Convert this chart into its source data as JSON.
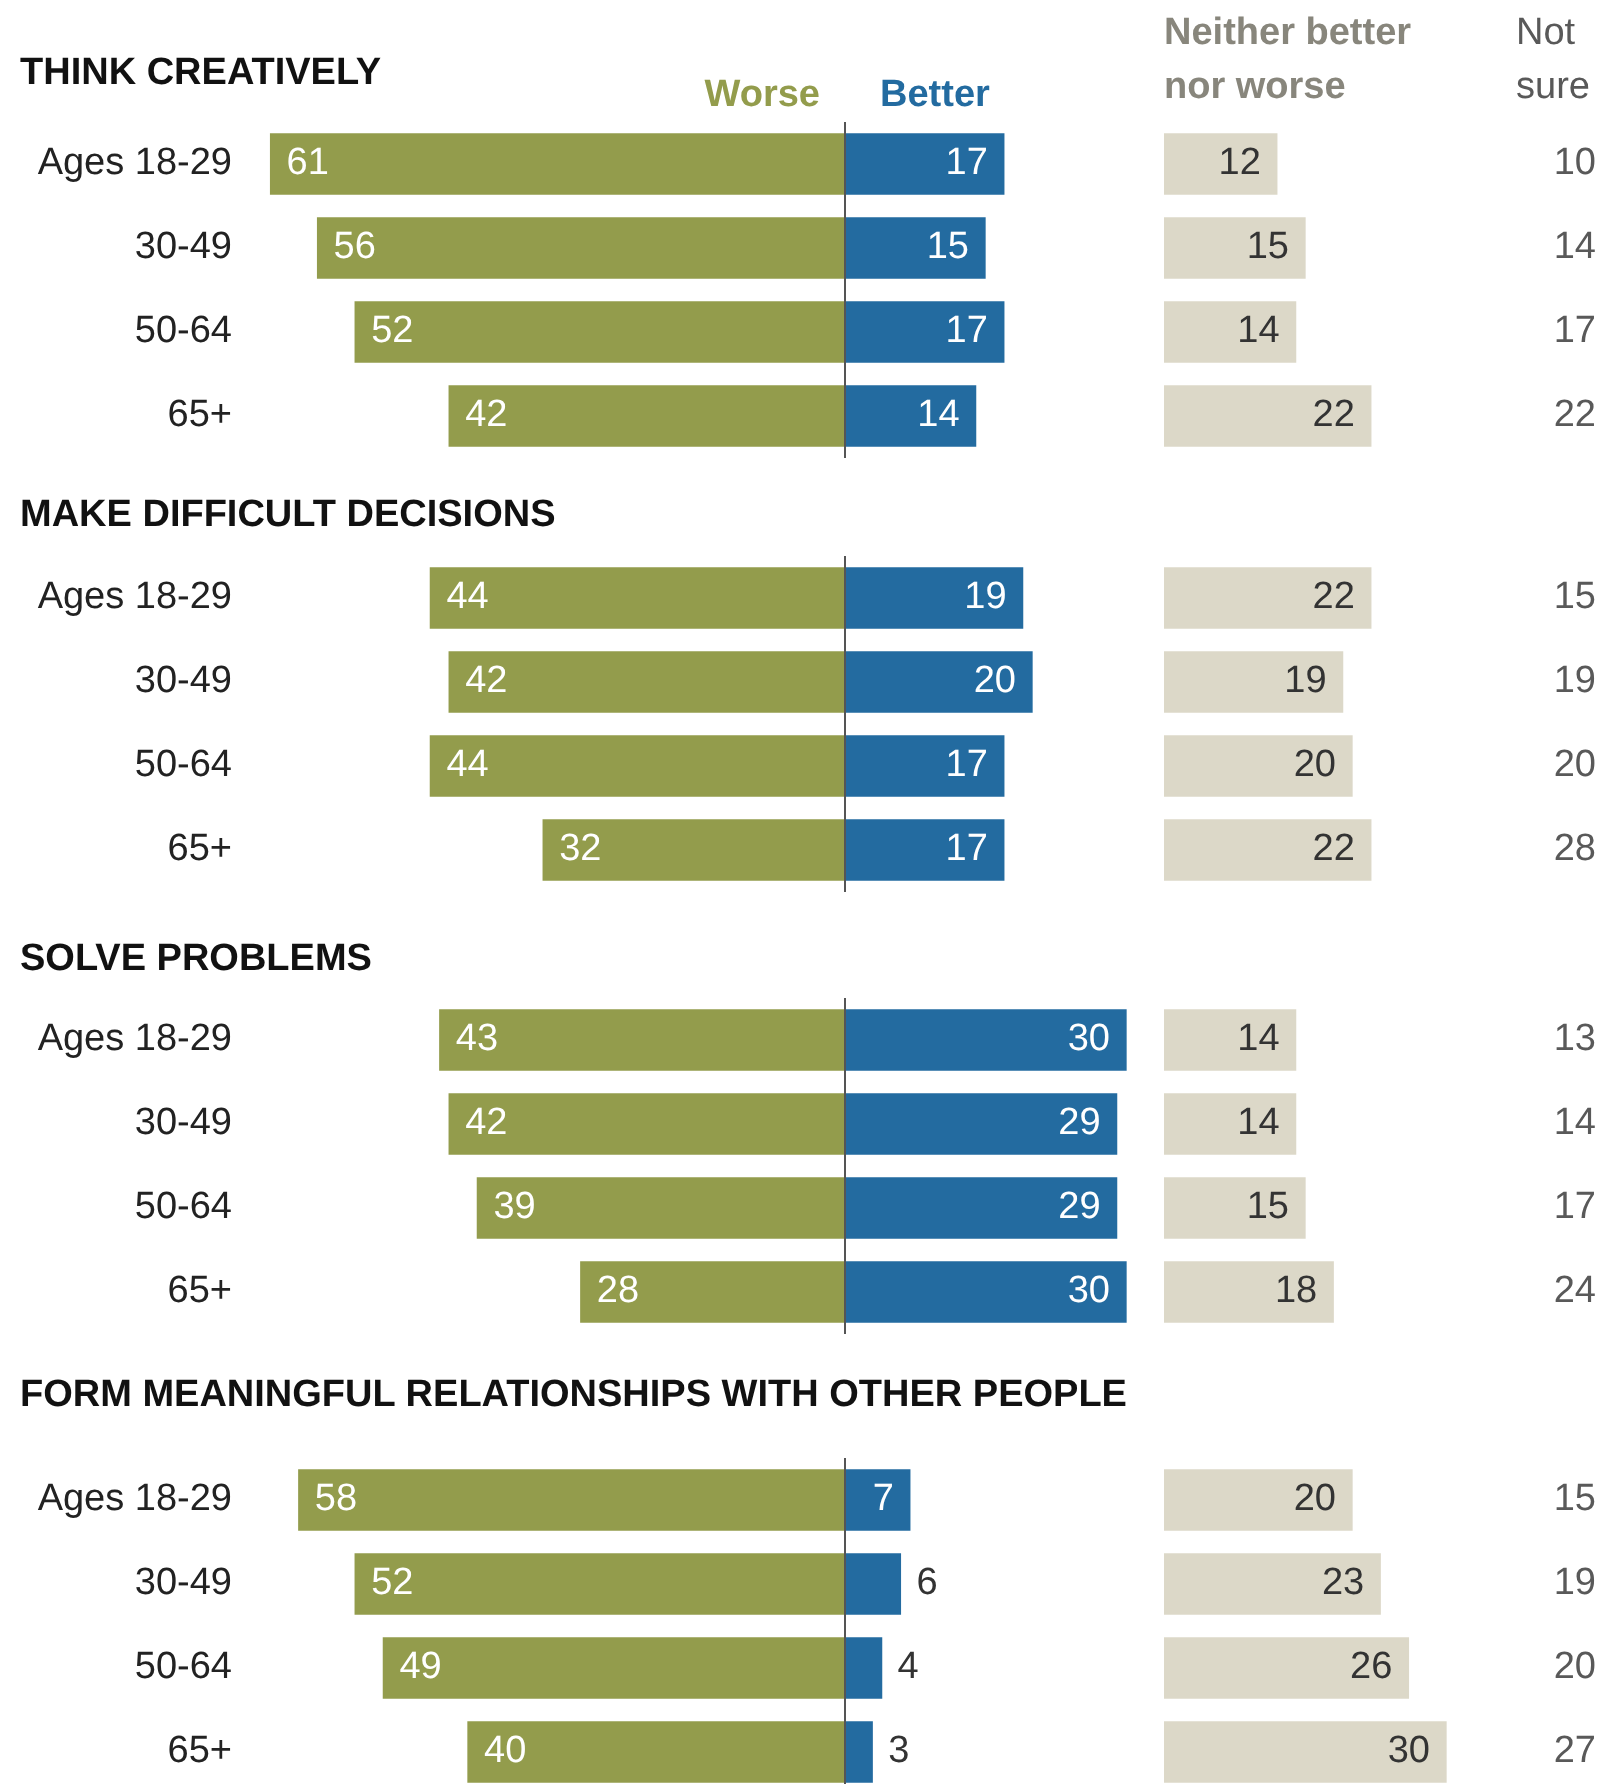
{
  "chart_data": [
    {
      "type": "bar",
      "orientation": "horizontal",
      "title": "THINK CREATIVELY",
      "categories": [
        "Ages 18-29",
        "30-49",
        "50-64",
        "65+"
      ],
      "data_labels": true,
      "tick_labels": "y",
      "series": [
        {
          "name": "Worse",
          "color": "#939c4c",
          "values": [
            61,
            56,
            52,
            42
          ]
        }
      ]
    },
    {
      "type": "bar",
      "orientation": "horizontal",
      "categories": [
        null,
        null,
        null,
        null
      ],
      "data_labels": true,
      "tick_labels": false,
      "series": [
        {
          "name": "Better",
          "color": "#236ba0",
          "values": [
            17,
            15,
            17,
            14
          ]
        }
      ]
    },
    {
      "type": "bar",
      "orientation": "horizontal",
      "categories": [
        null,
        null,
        null,
        null
      ],
      "data_labels": true,
      "tick_labels": false,
      "series": [
        {
          "name": "Neither better nor worse",
          "color": "#dcd8c8",
          "values": [
            12,
            15,
            14,
            22
          ]
        }
      ]
    },
    {
      "type": "other",
      "categories": [
        null,
        null,
        null,
        null
      ],
      "data_labels": true,
      "series": [
        {
          "name": "Not sure",
          "color": "#595959",
          "values": [
            10,
            14,
            17,
            22
          ]
        }
      ]
    },
    {
      "type": "bar",
      "orientation": "horizontal",
      "title": "MAKE DIFFICULT DECISIONS",
      "categories": [
        "Ages 18-29",
        "30-49",
        "50-64",
        "65+"
      ],
      "data_labels": true,
      "tick_labels": "y",
      "series": [
        {
          "color": "#939c4c",
          "values": [
            44,
            42,
            44,
            32
          ]
        }
      ]
    },
    {
      "type": "bar",
      "orientation": "horizontal",
      "categories": [
        null,
        null,
        null,
        null
      ],
      "data_labels": true,
      "tick_labels": false,
      "series": [
        {
          "color": "#236ba0",
          "values": [
            19,
            20,
            17,
            17
          ]
        }
      ]
    },
    {
      "type": "bar",
      "orientation": "horizontal",
      "categories": [
        null,
        null,
        null,
        null
      ],
      "data_labels": true,
      "tick_labels": false,
      "series": [
        {
          "color": "#dcd8c8",
          "values": [
            22,
            19,
            20,
            22
          ]
        }
      ]
    },
    {
      "type": "other",
      "categories": [
        null,
        null,
        null,
        null
      ],
      "data_labels": true,
      "series": [
        {
          "color": "#595959",
          "values": [
            15,
            19,
            20,
            28
          ]
        }
      ]
    },
    {
      "type": "bar",
      "orientation": "horizontal",
      "title": "SOLVE PROBLEMS",
      "categories": [
        "Ages 18-29",
        "30-49",
        "50-64",
        "65+"
      ],
      "data_labels": true,
      "tick_labels": "y",
      "series": [
        {
          "color": "#939c4c",
          "values": [
            43,
            42,
            39,
            28
          ]
        }
      ]
    },
    {
      "type": "bar",
      "orientation": "horizontal",
      "categories": [
        null,
        null,
        null,
        null
      ],
      "data_labels": true,
      "tick_labels": false,
      "series": [
        {
          "color": "#236ba0",
          "values": [
            30,
            29,
            29,
            30
          ]
        }
      ]
    },
    {
      "type": "bar",
      "orientation": "horizontal",
      "categories": [
        null,
        null,
        null,
        null
      ],
      "data_labels": true,
      "tick_labels": false,
      "series": [
        {
          "color": "#dcd8c8",
          "values": [
            14,
            14,
            15,
            18
          ]
        }
      ]
    },
    {
      "type": "other",
      "categories": [
        null,
        null,
        null,
        null
      ],
      "data_labels": true,
      "series": [
        {
          "color": "#595959",
          "values": [
            13,
            14,
            17,
            24
          ]
        }
      ]
    },
    {
      "type": "bar",
      "orientation": "horizontal",
      "title": "FORM MEANINGFUL RELATIONSHIPS WITH OTHER PEOPLE",
      "categories": [
        "Ages 18-29",
        "30-49",
        "50-64",
        "65+"
      ],
      "data_labels": true,
      "tick_labels": "y",
      "series": [
        {
          "color": "#939c4c",
          "values": [
            58,
            52,
            49,
            40
          ]
        }
      ]
    },
    {
      "type": "bar",
      "orientation": "horizontal",
      "categories": [
        null,
        null,
        null,
        null
      ],
      "data_labels": true,
      "tick_labels": false,
      "series": [
        {
          "color": "#236ba0",
          "values": [
            7,
            6,
            4,
            3
          ]
        }
      ]
    },
    {
      "type": "bar",
      "orientation": "horizontal",
      "categories": [
        null,
        null,
        null,
        null
      ],
      "data_labels": true,
      "tick_labels": false,
      "series": [
        {
          "color": "#dcd8c8",
          "values": [
            20,
            23,
            26,
            30
          ]
        }
      ]
    },
    {
      "type": "other",
      "categories": [
        null,
        null,
        null,
        null
      ],
      "data_labels": true,
      "series": [
        {
          "color": "#595959",
          "values": [
            15,
            19,
            20,
            27
          ]
        }
      ]
    }
  ]
}
